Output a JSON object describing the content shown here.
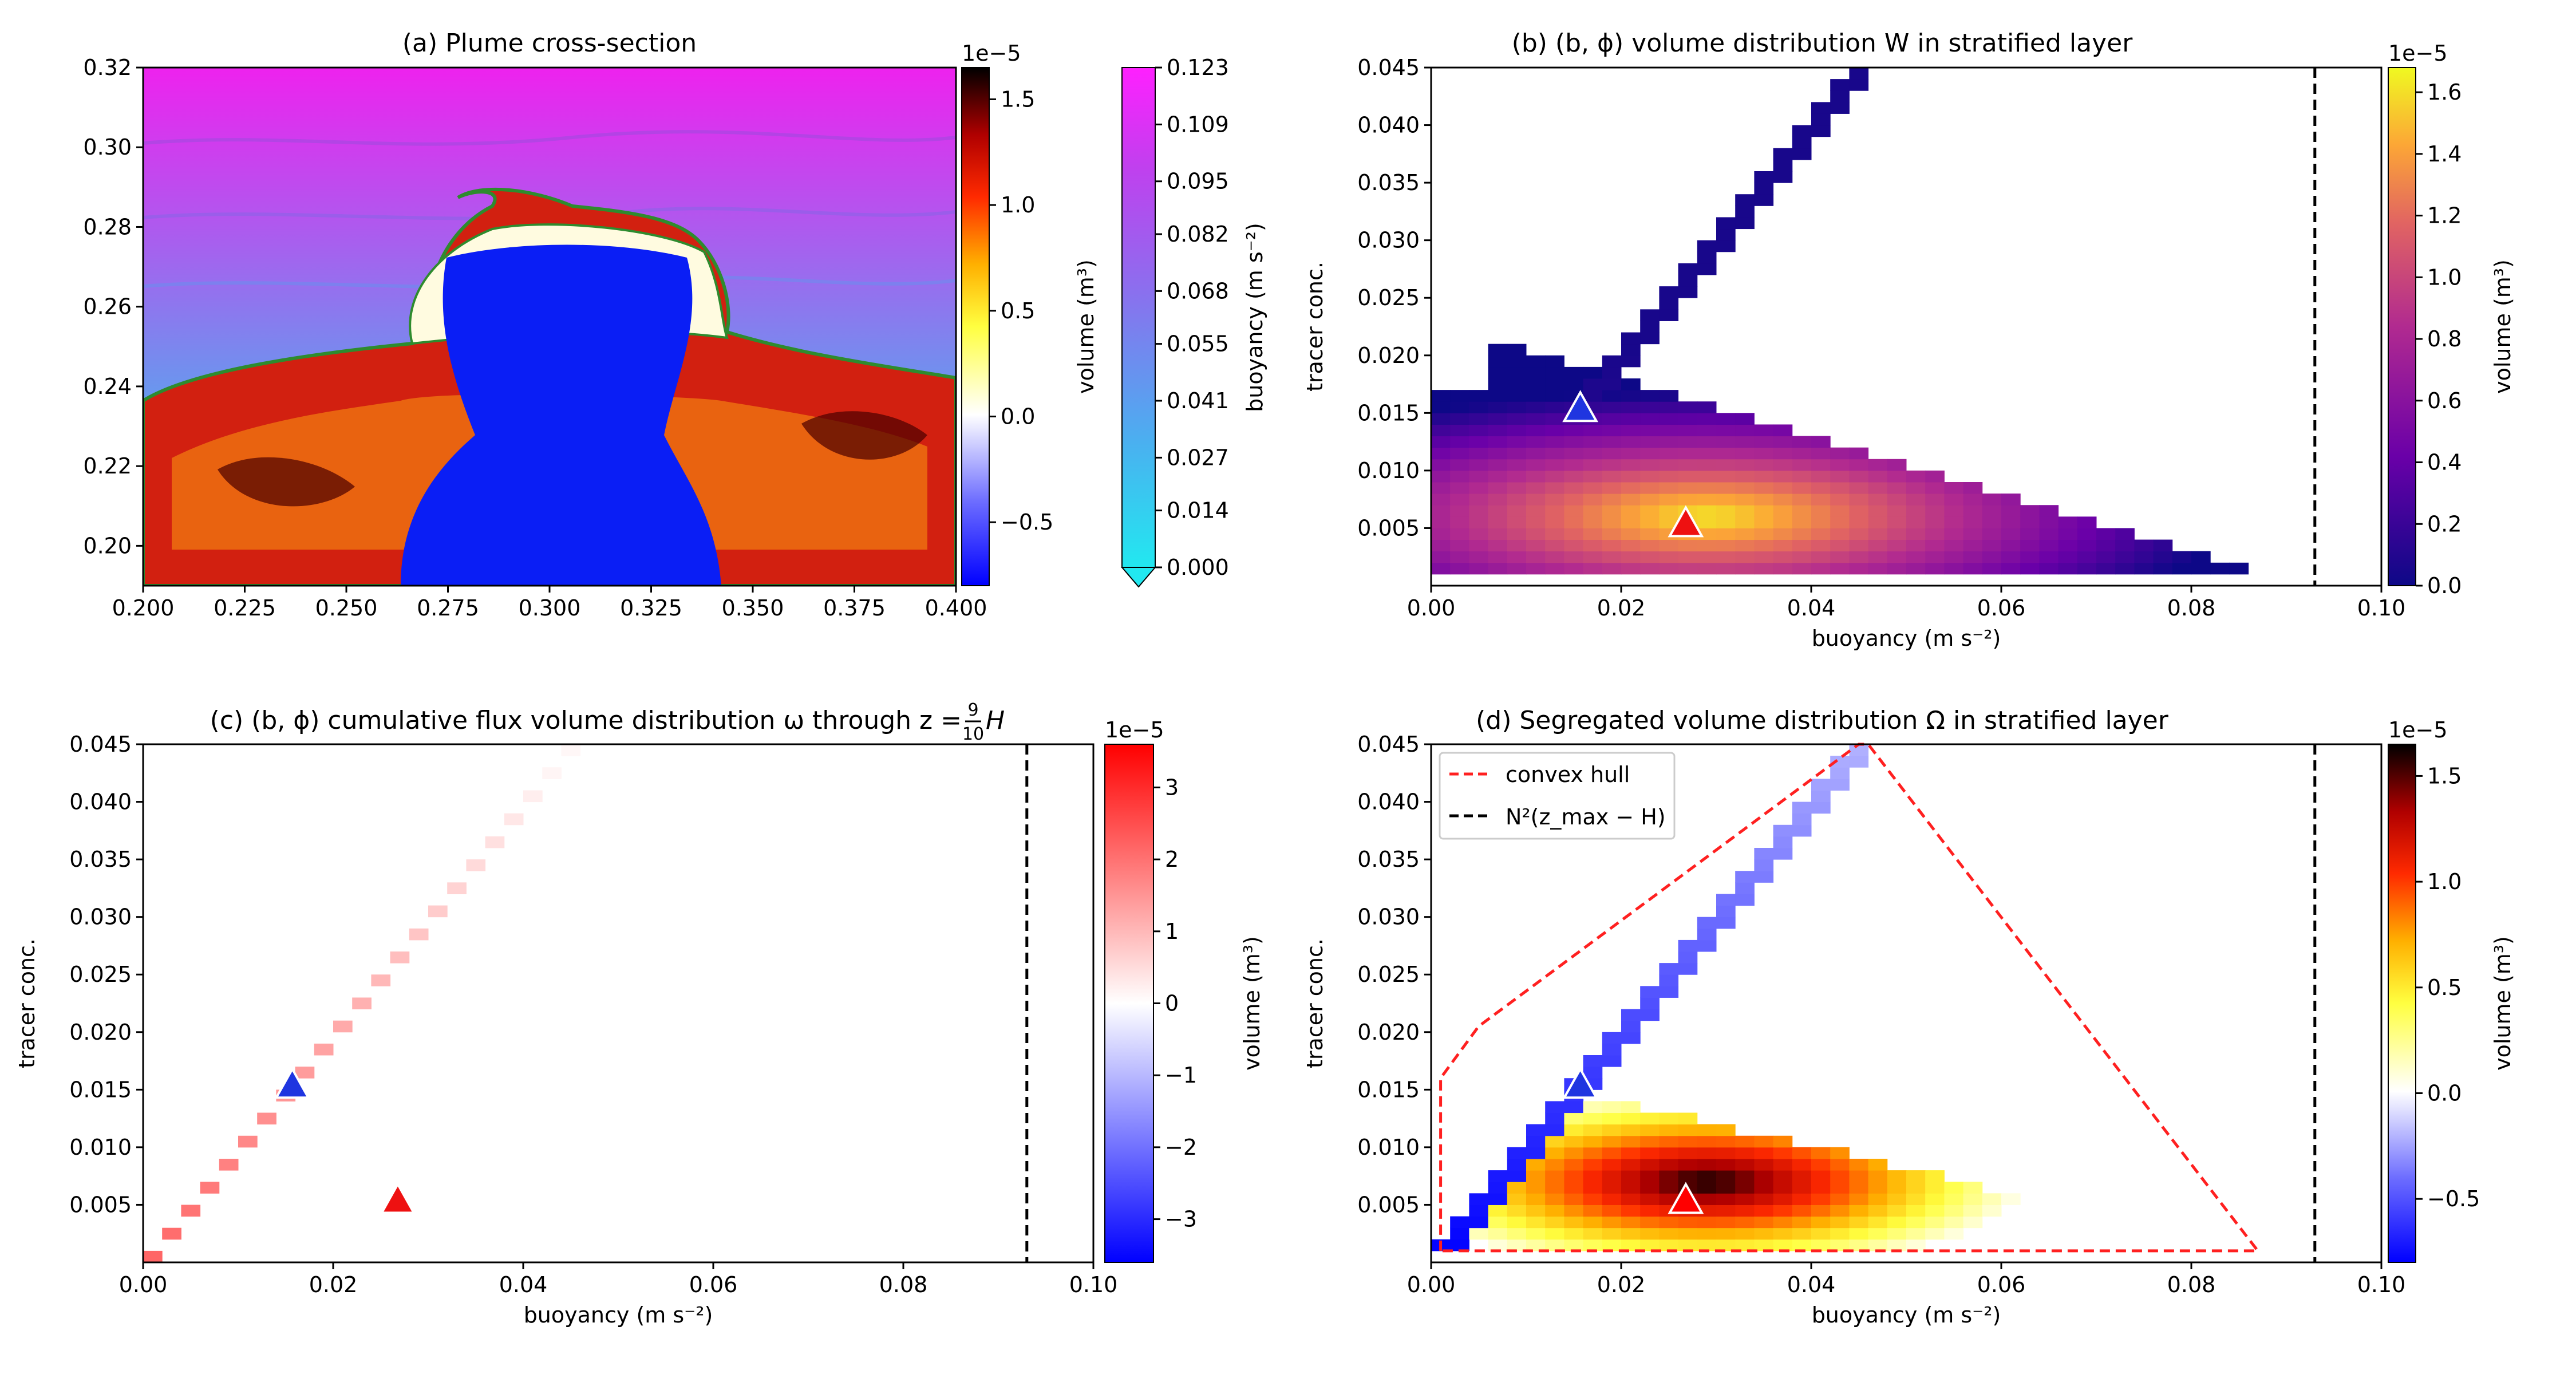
{
  "colors": {
    "plume_core": "#0a1ef5",
    "plume_hot": "#c81e00",
    "stratified_top": "#ee22ee",
    "stratified_bottom": "#22e8f0",
    "contour_line": "#2e8b2e",
    "convex_hull": "#ff2020",
    "dashed_ref": "#000000",
    "marker_blue": "#1f35e0",
    "marker_red": "#ee1111"
  },
  "chart_data": [
    {
      "id": "a",
      "type": "heatmap",
      "title": "(a) Plume cross-section",
      "xlabel": "",
      "ylabel": "",
      "xlim": [
        0.2,
        0.4
      ],
      "ylim": [
        0.19,
        0.32
      ],
      "xticks": [
        "0.200",
        "0.225",
        "0.250",
        "0.275",
        "0.300",
        "0.325",
        "0.350",
        "0.375",
        "0.400"
      ],
      "yticks": [
        "0.20",
        "0.22",
        "0.24",
        "0.26",
        "0.28",
        "0.30",
        "0.32"
      ],
      "colorbars": [
        {
          "label": "volume (m³)",
          "exponent": "1e−5",
          "cmap": "seismic-hot",
          "ticks": [
            "1.5",
            "1.0",
            "0.5",
            "0.0",
            "−0.5"
          ],
          "range": [
            -0.8,
            1.65
          ]
        },
        {
          "label": "buoyancy (m s⁻²)",
          "cmap": "cool",
          "extend": "min",
          "ticks": [
            "0.123",
            "0.109",
            "0.095",
            "0.082",
            "0.068",
            "0.055",
            "0.041",
            "0.027",
            "0.014",
            "0.000"
          ],
          "range": [
            0.0,
            0.123
          ]
        }
      ],
      "description": "Buoyancy contours with plume volume overlay"
    },
    {
      "id": "b",
      "type": "heatmap",
      "title": "(b) (b, ϕ) volume distribution W in stratified layer",
      "xlabel": "buoyancy (m s⁻²)",
      "ylabel": "tracer conc.",
      "xlim": [
        0.0,
        0.1
      ],
      "ylim": [
        0.0,
        0.045
      ],
      "xticks": [
        "0.00",
        "0.02",
        "0.04",
        "0.06",
        "0.08",
        "0.10"
      ],
      "yticks": [
        "0.005",
        "0.010",
        "0.015",
        "0.020",
        "0.025",
        "0.030",
        "0.035",
        "0.040",
        "0.045"
      ],
      "vline_x": 0.093,
      "markers": [
        {
          "shape": "triangle",
          "color": "blue",
          "x": 0.0157,
          "y": 0.0152
        },
        {
          "shape": "triangle",
          "color": "red",
          "x": 0.0268,
          "y": 0.0052
        }
      ],
      "colorbar": {
        "label": "volume (m³)",
        "exponent": "1e−5",
        "cmap": "plasma",
        "ticks": [
          "0.0",
          "0.2",
          "0.4",
          "0.6",
          "0.8",
          "1.0",
          "1.2",
          "1.4",
          "1.6"
        ],
        "range": [
          0.0,
          1.68
        ]
      }
    },
    {
      "id": "c",
      "type": "heatmap",
      "title": "(c) (b, ϕ) cumulative flux volume distribution ω through z = ",
      "title_frac_num": "9",
      "title_frac_den": "10",
      "title_end": "H",
      "xlabel": "buoyancy (m s⁻²)",
      "ylabel": "tracer conc.",
      "xlim": [
        0.0,
        0.1
      ],
      "ylim": [
        0.0,
        0.045
      ],
      "xticks": [
        "0.00",
        "0.02",
        "0.04",
        "0.06",
        "0.08",
        "0.10"
      ],
      "yticks": [
        "0.005",
        "0.010",
        "0.015",
        "0.020",
        "0.025",
        "0.030",
        "0.035",
        "0.040",
        "0.045"
      ],
      "vline_x": 0.093,
      "markers": [
        {
          "shape": "triangle",
          "color": "blue",
          "x": 0.0157,
          "y": 0.0152
        },
        {
          "shape": "triangle",
          "color": "red",
          "x": 0.0268,
          "y": 0.0052
        }
      ],
      "colorbar": {
        "label": "volume (m³)",
        "exponent": "1e−5",
        "cmap": "bwr",
        "ticks": [
          "3",
          "2",
          "1",
          "0",
          "−1",
          "−2",
          "−3"
        ],
        "range": [
          -3.6,
          3.6
        ]
      }
    },
    {
      "id": "d",
      "type": "heatmap",
      "title": "(d) Segregated volume distribution Ω in stratified layer",
      "xlabel": "buoyancy (m s⁻²)",
      "ylabel": "tracer conc.",
      "xlim": [
        0.0,
        0.1
      ],
      "ylim": [
        0.0,
        0.045
      ],
      "xticks": [
        "0.00",
        "0.02",
        "0.04",
        "0.06",
        "0.08",
        "0.10"
      ],
      "yticks": [
        "0.005",
        "0.010",
        "0.015",
        "0.020",
        "0.025",
        "0.030",
        "0.035",
        "0.040",
        "0.045"
      ],
      "vline_x": 0.093,
      "convex_hull": [
        [
          0.001,
          0.001
        ],
        [
          0.001,
          0.016
        ],
        [
          0.005,
          0.0205
        ],
        [
          0.045,
          0.045
        ],
        [
          0.046,
          0.045
        ],
        [
          0.087,
          0.001
        ]
      ],
      "legend": {
        "position": "top-left",
        "entries": [
          {
            "label": "convex hull",
            "style": "red dashed"
          },
          {
            "label": "N²(z_max − H)",
            "style": "black dashed"
          }
        ]
      },
      "markers": [
        {
          "shape": "triangle",
          "color": "blue",
          "x": 0.0157,
          "y": 0.0152
        },
        {
          "shape": "triangle",
          "color": "white",
          "x": 0.0268,
          "y": 0.0052
        }
      ],
      "colorbar": {
        "label": "volume (m³)",
        "exponent": "1e−5",
        "cmap": "seismic-hot",
        "ticks": [
          "1.5",
          "1.0",
          "0.5",
          "0.0",
          "−0.5"
        ],
        "range": [
          -0.8,
          1.65
        ]
      }
    }
  ]
}
